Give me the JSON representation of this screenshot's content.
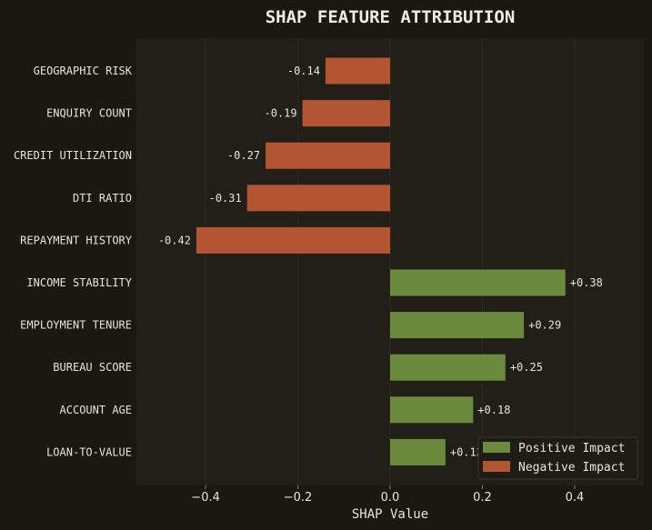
{
  "chart_data": {
    "type": "bar",
    "orientation": "horizontal",
    "title": "SHAP FEATURE ATTRIBUTION",
    "xlabel": "SHAP Value",
    "ylabel": "",
    "xlim": [
      -0.55,
      0.55
    ],
    "xticks": [
      -0.4,
      -0.2,
      0.0,
      0.2,
      0.4
    ],
    "xtick_labels": [
      "−0.4",
      "−0.2",
      "0.0",
      "0.2",
      "0.4"
    ],
    "grid": "vertical",
    "legend_position": "bottom-right",
    "categories": [
      "GEOGRAPHIC RISK",
      "ENQUIRY COUNT",
      "CREDIT UTILIZATION",
      "DTI RATIO",
      "REPAYMENT HISTORY",
      "INCOME STABILITY",
      "EMPLOYMENT TENURE",
      "BUREAU SCORE",
      "ACCOUNT AGE",
      "LOAN-TO-VALUE"
    ],
    "values": [
      -0.14,
      -0.19,
      -0.27,
      -0.31,
      -0.42,
      0.38,
      0.29,
      0.25,
      0.18,
      0.12
    ],
    "value_labels": [
      "-0.14",
      "-0.19",
      "-0.27",
      "-0.31",
      "-0.42",
      "+0.38",
      "+0.29",
      "+0.25",
      "+0.18",
      "+0.12"
    ],
    "legend": [
      {
        "label": "Positive Impact",
        "color": "#6b8a3e"
      },
      {
        "label": "Negative Impact",
        "color": "#b35433"
      }
    ],
    "colors": {
      "positive": "#6b8a3e",
      "negative": "#b35433",
      "plot_background": "#211f18",
      "figure_background": "#1a1813",
      "grid": "#2f2c24"
    }
  }
}
